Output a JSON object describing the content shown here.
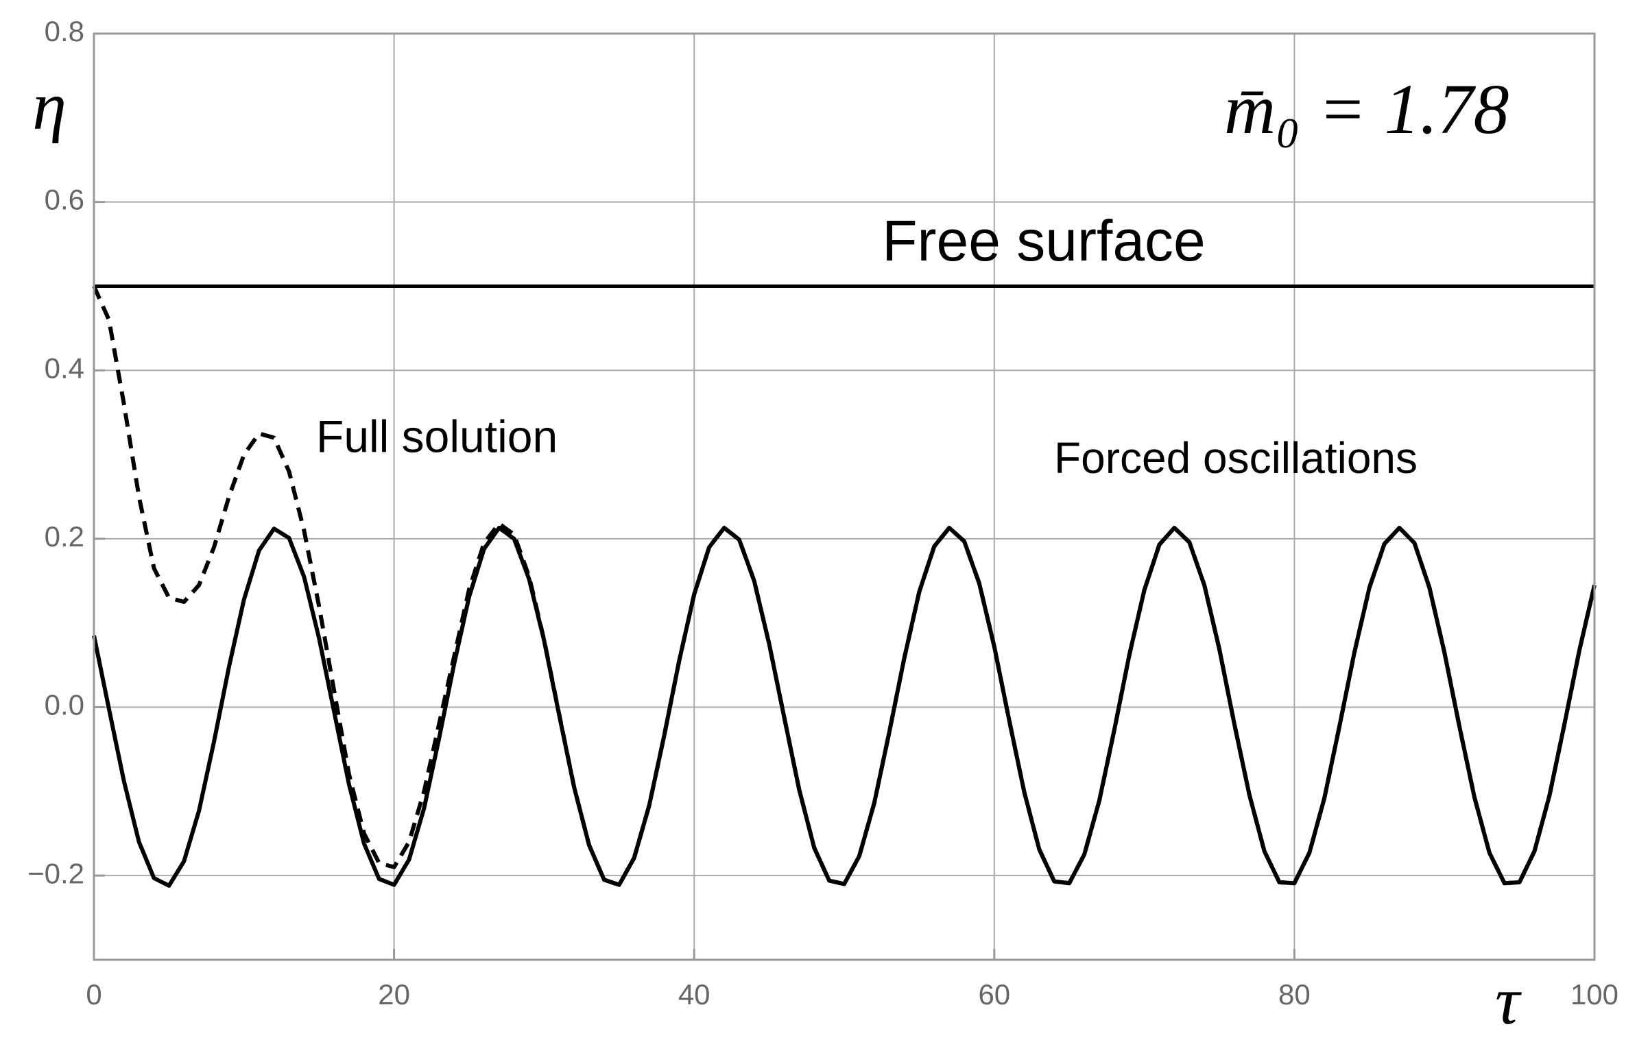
{
  "chart_data": {
    "type": "line",
    "x_label": "τ",
    "y_label": "η",
    "parameter_label": "m̄₀ = 1.78",
    "xlim": [
      0,
      100
    ],
    "ylim": [
      -0.3,
      0.8
    ],
    "xticks": [
      0,
      20,
      40,
      60,
      80,
      100
    ],
    "yticks": [
      {
        "value": -0.2,
        "label": "−0.2"
      },
      {
        "value": 0,
        "label": "0.0"
      },
      0.2,
      0.4,
      0.6,
      0.8
    ],
    "grid": true,
    "hline": {
      "name": "Free surface",
      "value": 0.5,
      "color": "#000000"
    },
    "x": [
      0,
      1,
      2,
      3,
      4,
      5,
      6,
      7,
      8,
      9,
      10,
      11,
      12,
      13,
      14,
      15,
      16,
      17,
      18,
      19,
      20,
      21,
      22,
      23,
      24,
      25,
      26,
      27,
      28,
      29,
      30,
      31,
      32,
      33,
      34,
      35,
      36,
      37,
      38,
      39,
      40,
      41,
      42,
      43,
      44,
      45,
      46,
      47,
      48,
      49,
      50,
      51,
      52,
      53,
      54,
      55,
      56,
      57,
      58,
      59,
      60,
      61,
      62,
      63,
      64,
      65,
      66,
      67,
      68,
      69,
      70,
      71,
      72,
      73,
      74,
      75,
      76,
      77,
      78,
      79,
      80,
      81,
      82,
      83,
      84,
      85,
      86,
      87,
      88,
      89,
      90,
      91,
      92,
      93,
      94,
      95,
      96,
      97,
      98,
      99,
      100
    ],
    "series": [
      {
        "name": "Forced oscillations",
        "color": "#000000",
        "dashed": false,
        "values": [
          0.085,
          -0.002,
          -0.088,
          -0.16,
          -0.203,
          -0.212,
          -0.183,
          -0.123,
          -0.041,
          0.048,
          0.128,
          0.186,
          0.212,
          0.201,
          0.155,
          0.082,
          -0.005,
          -0.092,
          -0.162,
          -0.204,
          -0.211,
          -0.181,
          -0.12,
          -0.037,
          0.051,
          0.131,
          0.188,
          0.213,
          0.2,
          0.152,
          0.079,
          -0.009,
          -0.095,
          -0.164,
          -0.205,
          -0.211,
          -0.179,
          -0.117,
          -0.034,
          0.055,
          0.134,
          0.19,
          0.213,
          0.199,
          0.15,
          0.075,
          -0.012,
          -0.098,
          -0.167,
          -0.206,
          -0.21,
          -0.177,
          -0.114,
          -0.03,
          0.058,
          0.137,
          0.191,
          0.213,
          0.197,
          0.147,
          0.072,
          -0.016,
          -0.101,
          -0.169,
          -0.207,
          -0.209,
          -0.175,
          -0.111,
          -0.027,
          0.062,
          0.139,
          0.193,
          0.213,
          0.196,
          0.145,
          0.069,
          -0.02,
          -0.104,
          -0.171,
          -0.208,
          -0.209,
          -0.173,
          -0.108,
          -0.023,
          0.065,
          0.142,
          0.194,
          0.213,
          0.195,
          0.142,
          0.065,
          -0.023,
          -0.107,
          -0.173,
          -0.209,
          -0.208,
          -0.171,
          -0.105,
          -0.02,
          0.068,
          0.145
        ]
      },
      {
        "name": "Full solution",
        "color": "#000000",
        "dashed": true,
        "values": [
          0.5,
          0.46,
          0.36,
          0.25,
          0.165,
          0.13,
          0.125,
          0.145,
          0.19,
          0.25,
          0.3,
          0.325,
          0.32,
          0.28,
          0.21,
          0.12,
          0.02,
          -0.08,
          -0.15,
          -0.185,
          -0.19,
          -0.16,
          -0.1,
          -0.02,
          0.06,
          0.14,
          0.195,
          0.218,
          0.205,
          0.155,
          0.08,
          -0.008,
          -0.095,
          -0.164,
          -0.205,
          -0.211,
          -0.179,
          -0.117,
          -0.034,
          0.055,
          0.134,
          0.19,
          0.213,
          0.199,
          0.15,
          0.075,
          -0.012,
          -0.098,
          -0.167,
          -0.206,
          -0.21,
          -0.177,
          -0.114,
          -0.03,
          0.058,
          0.137,
          0.191,
          0.213,
          0.197,
          0.147,
          0.072,
          -0.016,
          -0.101,
          -0.169,
          -0.207,
          -0.209,
          -0.175,
          -0.111,
          -0.027,
          0.062,
          0.139,
          0.193,
          0.213,
          0.196,
          0.145,
          0.069,
          -0.02,
          -0.104,
          -0.171,
          -0.208,
          -0.209,
          -0.173,
          -0.108,
          -0.023,
          0.065,
          0.142,
          0.194,
          0.213,
          0.195,
          0.142,
          0.065,
          -0.023,
          -0.107,
          -0.173,
          -0.209,
          -0.208,
          -0.171,
          -0.105,
          -0.02,
          0.068,
          0.145
        ]
      }
    ]
  }
}
